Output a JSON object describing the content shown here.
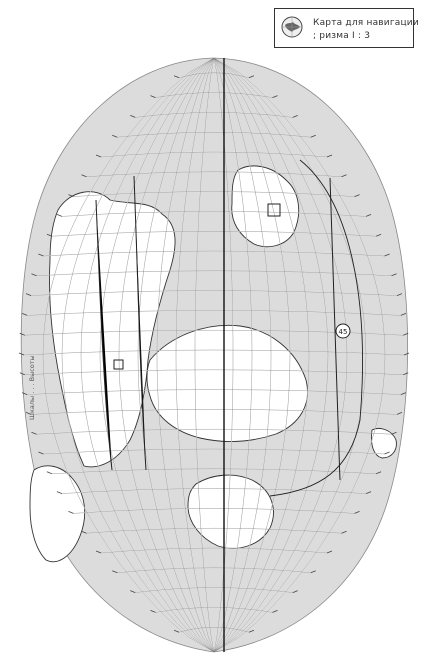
{
  "legend": {
    "title_line1": "Карта для навигации",
    "title_line2": "; ризма I : 3"
  },
  "side_text": "Шкалы . . . Высоты",
  "circled_marks": [
    "45"
  ],
  "colors": {
    "land": "#ffffff",
    "ocean": "#dcdcdc",
    "grid": "#f5f5f5",
    "outline": "#333333",
    "meridian": "#111111"
  },
  "icon_names": [
    "globe-emblem-icon"
  ]
}
